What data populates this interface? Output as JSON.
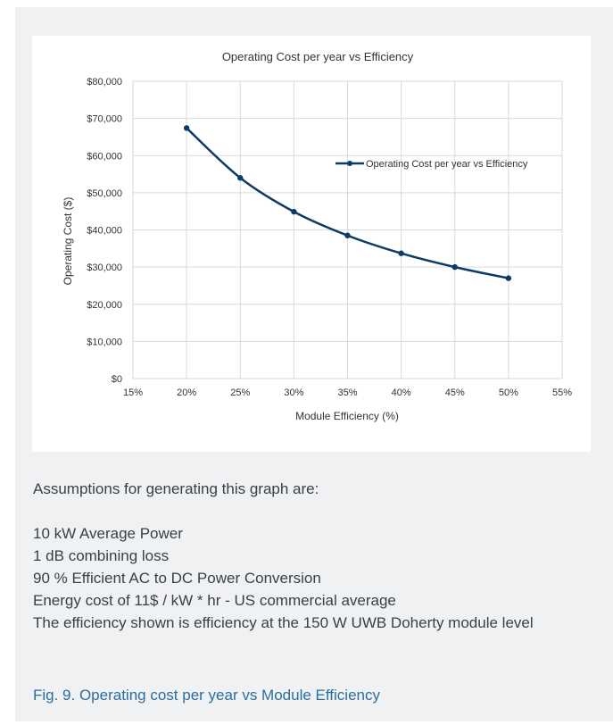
{
  "chart_data": {
    "type": "line",
    "title": "Operating Cost per year vs Efficiency",
    "xlabel": "Module Efficiency (%)",
    "ylabel": "Operating Cost ($)",
    "x_ticks": [
      "15%",
      "20%",
      "25%",
      "30%",
      "35%",
      "40%",
      "45%",
      "50%",
      "55%"
    ],
    "y_ticks": [
      "$0",
      "$10,000",
      "$20,000",
      "$30,000",
      "$40,000",
      "$50,000",
      "$60,000",
      "$70,000",
      "$80,000"
    ],
    "xlim": [
      15,
      55
    ],
    "ylim": [
      0,
      80000
    ],
    "grid": true,
    "legend_position": "right",
    "series": [
      {
        "name": "Operating Cost per year vs Efficiency",
        "color": "#0d3b66",
        "x": [
          20,
          25,
          30,
          35,
          40,
          45,
          50
        ],
        "y": [
          67400,
          54000,
          44900,
          38500,
          33700,
          30000,
          27000
        ]
      }
    ]
  },
  "notes": {
    "intro": "Assumptions for generating this graph are:",
    "items": [
      "10 kW Average Power",
      "1 dB combining loss",
      "90 % Efficient AC to DC Power Conversion",
      "Energy cost of 11$ / kW * hr - US commercial average",
      "The efficiency shown is efficiency at the 150 W UWB Doherty module level"
    ]
  },
  "caption": "Fig. 9. Operating cost per year vs Module Efficiency"
}
